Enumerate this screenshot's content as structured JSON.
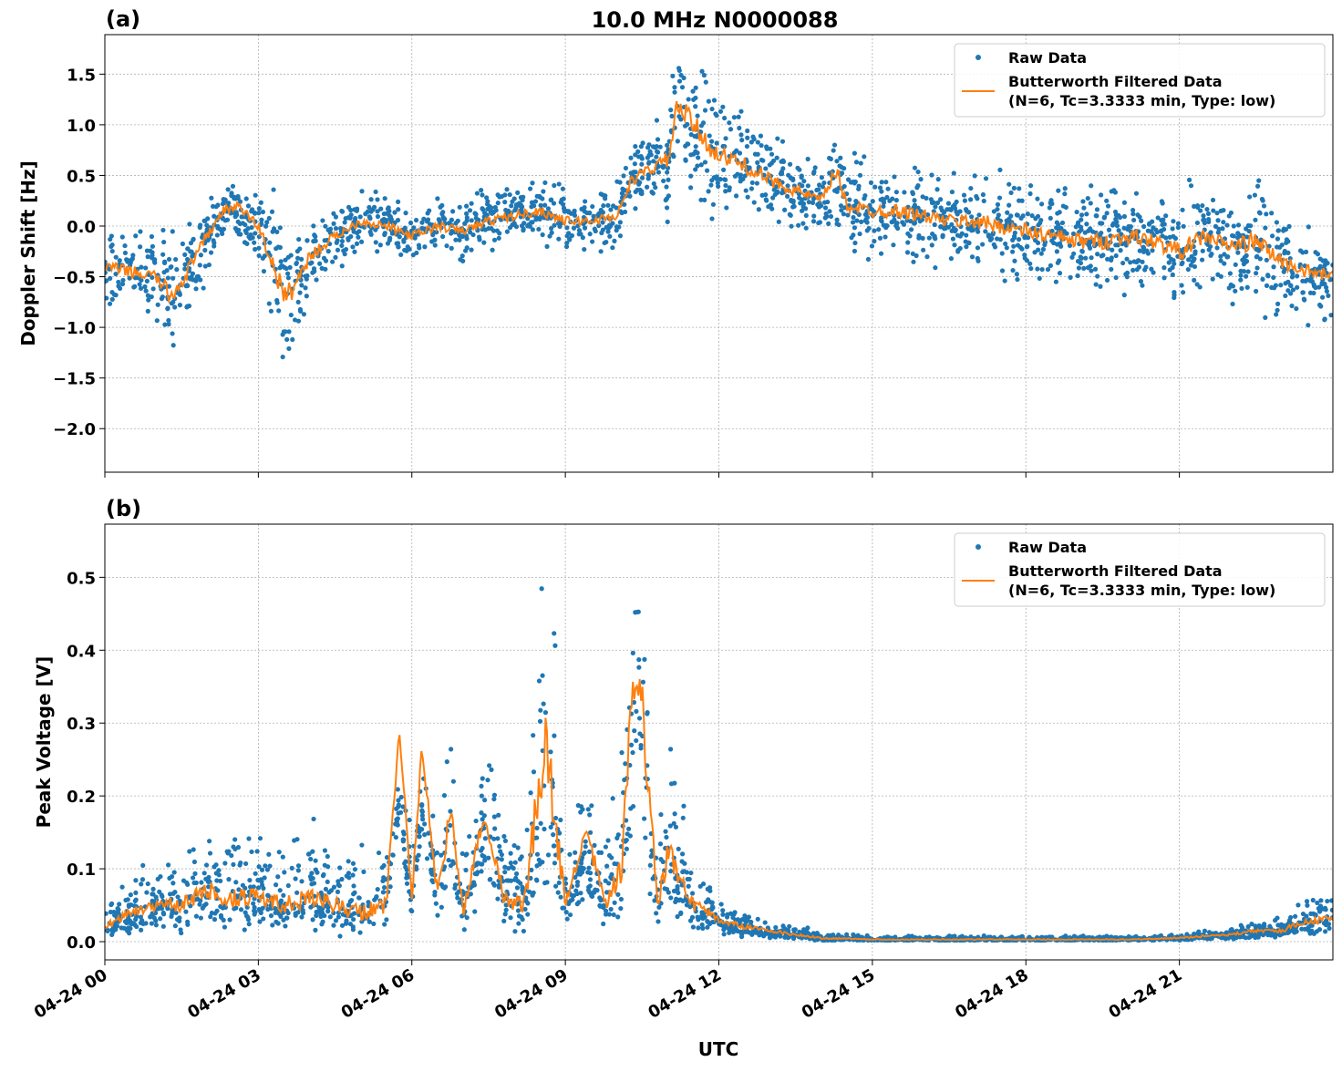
{
  "title": "10.0 MHz N0000088",
  "xlabel": "UTC",
  "x_ticks": [
    "04-24 00",
    "04-24 03",
    "04-24 06",
    "04-24 09",
    "04-24 12",
    "04-24 15",
    "04-24 18",
    "04-24 21"
  ],
  "x_tick_hours": [
    0,
    3,
    6,
    9,
    12,
    15,
    18,
    21
  ],
  "xlim_hours": [
    0,
    24
  ],
  "colors": {
    "raw": "#1f77b4",
    "filtered": "#ff7f0e"
  },
  "legend": {
    "raw": "Raw Data",
    "filtered_line1": "Butterworth Filtered Data",
    "filtered_line2": "(N=6, Tc=3.3333 min, Type: low)",
    "placement": "upper-right"
  },
  "chart_data": [
    {
      "type": "scatter+line",
      "panel_label": "(a)",
      "ylabel": "Doppler Shift [Hz]",
      "ylim": [
        -2.43,
        1.89
      ],
      "y_ticks": [
        1.5,
        1.0,
        0.5,
        0.0,
        -0.5,
        -1.0,
        -1.5,
        -2.0
      ],
      "y_tick_labels": [
        "1.5",
        "1.0",
        "0.5",
        "0.0",
        "−0.5",
        "−1.0",
        "−1.5",
        "−2.0"
      ],
      "grid": true,
      "x_hours": [
        0,
        0.5,
        1,
        1.3,
        1.5,
        2,
        2.3,
        2.6,
        3,
        3.3,
        3.5,
        3.7,
        4,
        4.5,
        5,
        5.5,
        6,
        6.5,
        7,
        7.5,
        8,
        8.5,
        9,
        9.5,
        10,
        10.3,
        10.6,
        11,
        11.2,
        11.5,
        11.8,
        12,
        12.5,
        13,
        13.5,
        14,
        14.3,
        14.5,
        15,
        15.5,
        16,
        16.5,
        17,
        17.5,
        18,
        18.5,
        19,
        19.5,
        20,
        20.5,
        21,
        21.5,
        22,
        22.5,
        23,
        23.5,
        24
      ],
      "filtered": [
        -0.4,
        -0.45,
        -0.5,
        -0.7,
        -0.55,
        -0.1,
        0.15,
        0.2,
        0.0,
        -0.4,
        -0.7,
        -0.6,
        -0.3,
        -0.1,
        0.05,
        0.0,
        -0.1,
        0.0,
        -0.05,
        0.05,
        0.1,
        0.15,
        0.05,
        0.05,
        0.1,
        0.45,
        0.55,
        0.65,
        1.2,
        1.0,
        0.8,
        0.7,
        0.6,
        0.45,
        0.35,
        0.25,
        0.55,
        0.2,
        0.15,
        0.15,
        0.1,
        0.05,
        0.05,
        0.0,
        -0.05,
        -0.1,
        -0.15,
        -0.15,
        -0.1,
        -0.15,
        -0.25,
        -0.1,
        -0.2,
        -0.15,
        -0.35,
        -0.45,
        -0.5
      ],
      "raw_spread": [
        0.25,
        0.25,
        0.3,
        0.4,
        0.35,
        0.25,
        0.2,
        0.2,
        0.25,
        0.45,
        0.5,
        0.45,
        0.3,
        0.2,
        0.2,
        0.2,
        0.2,
        0.2,
        0.2,
        0.2,
        0.2,
        0.2,
        0.2,
        0.2,
        0.2,
        0.25,
        0.25,
        0.4,
        0.5,
        0.5,
        0.45,
        0.4,
        0.35,
        0.3,
        0.25,
        0.25,
        0.35,
        0.3,
        0.3,
        0.3,
        0.3,
        0.3,
        0.35,
        0.35,
        0.35,
        0.35,
        0.35,
        0.35,
        0.35,
        0.35,
        0.4,
        0.35,
        0.35,
        0.4,
        0.35,
        0.3,
        0.3
      ]
    },
    {
      "type": "scatter+line",
      "panel_label": "(b)",
      "ylabel": "Peak Voltage [V]",
      "ylim": [
        -0.025,
        0.573
      ],
      "y_ticks": [
        0.0,
        0.1,
        0.2,
        0.3,
        0.4,
        0.5
      ],
      "y_tick_labels": [
        "0.0",
        "0.1",
        "0.2",
        "0.3",
        "0.4",
        "0.5"
      ],
      "grid": true,
      "x_hours": [
        0,
        0.5,
        1,
        1.5,
        2,
        2.5,
        3,
        3.5,
        4,
        4.5,
        5,
        5.5,
        5.75,
        6,
        6.2,
        6.5,
        6.75,
        7,
        7.4,
        7.8,
        8.2,
        8.6,
        9,
        9.4,
        9.8,
        10.1,
        10.3,
        10.5,
        10.8,
        11,
        11.5,
        12,
        12.5,
        13,
        13.5,
        14,
        15,
        16,
        17,
        18,
        19,
        20,
        21,
        22,
        22.5,
        23,
        23.5,
        24
      ],
      "filtered": [
        0.02,
        0.04,
        0.05,
        0.05,
        0.07,
        0.06,
        0.06,
        0.05,
        0.06,
        0.05,
        0.04,
        0.05,
        0.29,
        0.06,
        0.27,
        0.06,
        0.18,
        0.04,
        0.17,
        0.06,
        0.05,
        0.28,
        0.05,
        0.15,
        0.05,
        0.1,
        0.34,
        0.33,
        0.05,
        0.12,
        0.05,
        0.03,
        0.02,
        0.015,
        0.01,
        0.005,
        0.003,
        0.003,
        0.003,
        0.003,
        0.003,
        0.003,
        0.005,
        0.01,
        0.015,
        0.015,
        0.03,
        0.03
      ],
      "raw_spread": [
        0.02,
        0.03,
        0.04,
        0.05,
        0.06,
        0.06,
        0.06,
        0.05,
        0.06,
        0.05,
        0.05,
        0.05,
        0.05,
        0.05,
        0.05,
        0.05,
        0.08,
        0.05,
        0.09,
        0.06,
        0.05,
        0.25,
        0.05,
        0.07,
        0.05,
        0.1,
        0.2,
        0.2,
        0.05,
        0.1,
        0.05,
        0.02,
        0.015,
        0.01,
        0.008,
        0.005,
        0.003,
        0.003,
        0.003,
        0.003,
        0.003,
        0.003,
        0.004,
        0.008,
        0.01,
        0.015,
        0.02,
        0.03
      ]
    }
  ]
}
